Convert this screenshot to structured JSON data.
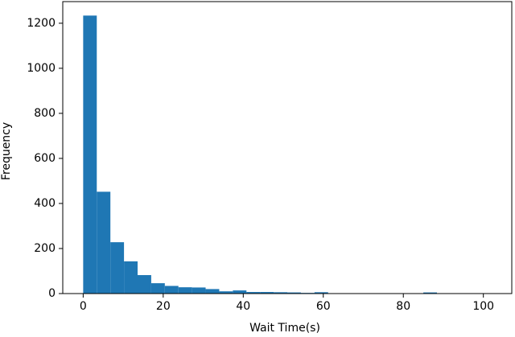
{
  "chart_data": {
    "type": "histogram",
    "x_label": "Wait Time(s)",
    "y_label": "Frequency",
    "bins": [
      0,
      3.4,
      6.8,
      10.2,
      13.6,
      17,
      20.4,
      23.8,
      27.2,
      30.6,
      34,
      37.4,
      40.8,
      44.2,
      47.6,
      51,
      54.4,
      57.8,
      61.2,
      64.6,
      68,
      71.4,
      74.8,
      78.2,
      81.6,
      85,
      88.4,
      91.8,
      95.2,
      98.6,
      102
    ],
    "counts": [
      1234,
      452,
      228,
      143,
      82,
      46,
      34,
      28,
      27,
      20,
      10,
      14,
      7,
      7,
      6,
      5,
      3,
      6,
      1,
      0,
      0,
      0,
      0,
      0,
      0,
      5,
      0,
      0,
      0,
      1
    ],
    "color": "#1f77b4",
    "xlim": [
      -5.1,
      107.1
    ],
    "xticks": [
      0,
      20,
      40,
      60,
      80,
      100
    ],
    "ylim": [
      0,
      1296
    ],
    "yticks": [
      0,
      200,
      400,
      600,
      800,
      1000,
      1200
    ]
  }
}
